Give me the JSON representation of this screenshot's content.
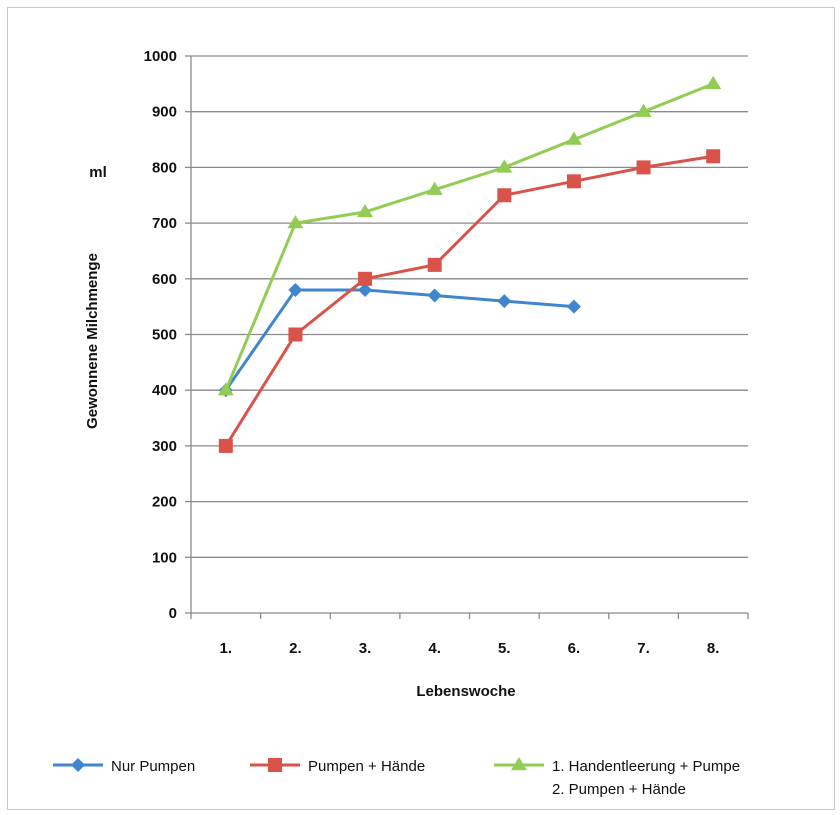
{
  "chart_data": {
    "type": "line",
    "title": "",
    "xlabel": "Lebenswoche",
    "ylabel": "Gewonnene Milchmenge",
    "yunit": "ml",
    "categories": [
      "1.",
      "2.",
      "3.",
      "4.",
      "5.",
      "6.",
      "7.",
      "8."
    ],
    "ylim": [
      0,
      1000
    ],
    "yticks": [
      0,
      100,
      200,
      300,
      400,
      500,
      600,
      700,
      800,
      900,
      1000
    ],
    "grid": true,
    "legend_position": "bottom",
    "series": [
      {
        "name": "Nur Pumpen",
        "color": "#3f86cf",
        "marker": "diamond",
        "values": [
          400,
          580,
          580,
          570,
          560,
          550,
          null,
          null
        ]
      },
      {
        "name": "Pumpen + Hände",
        "color": "#d9534a",
        "marker": "square",
        "values": [
          300,
          500,
          600,
          625,
          750,
          775,
          800,
          820
        ]
      },
      {
        "name": "1. Handentleerung + Pumpe",
        "name_line2": "2. Pumpen + Hände",
        "color": "#93cc55",
        "marker": "triangle",
        "values": [
          400,
          700,
          720,
          760,
          800,
          850,
          900,
          950
        ]
      }
    ]
  }
}
